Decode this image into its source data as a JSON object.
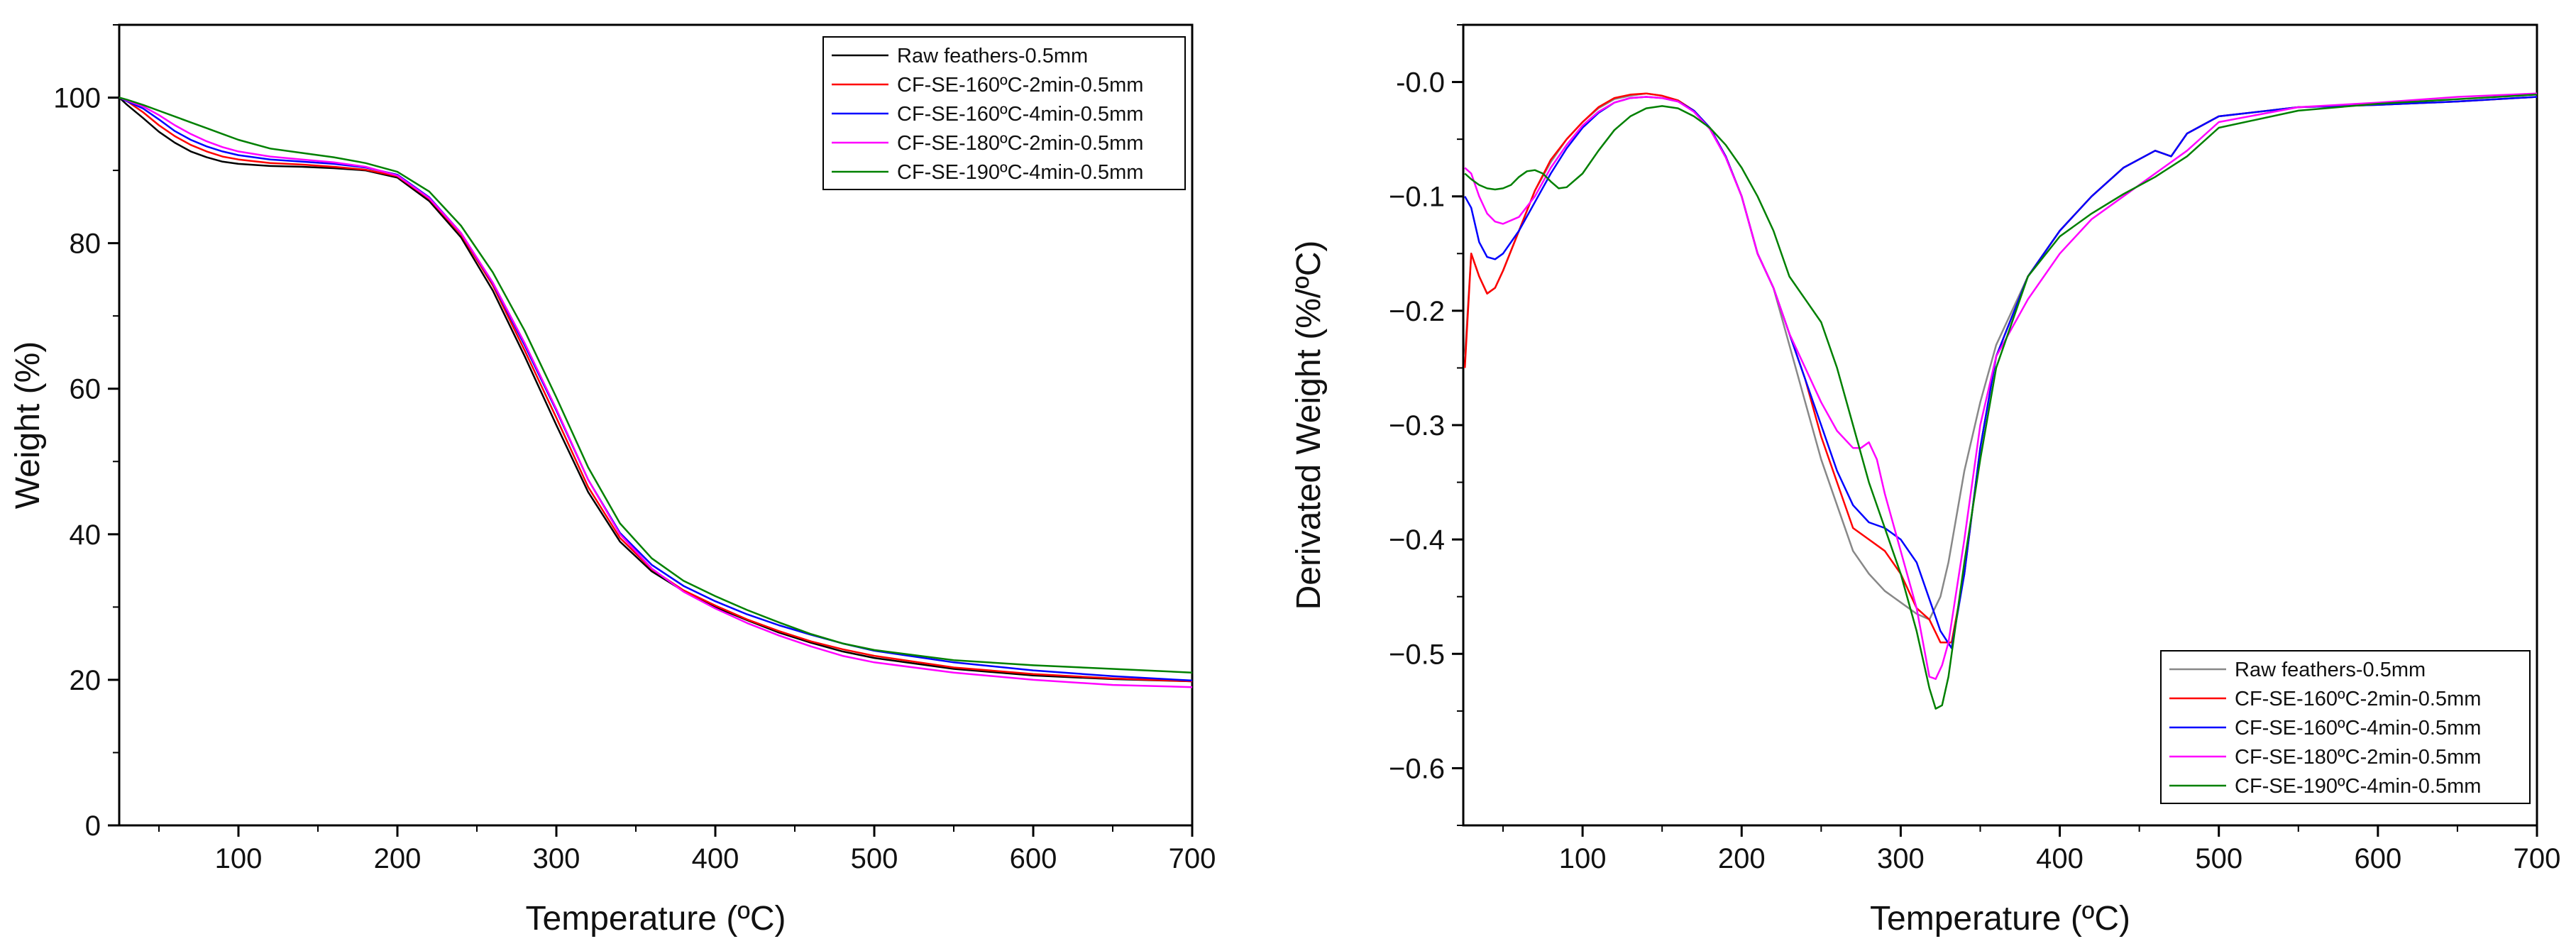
{
  "chart_data": [
    {
      "type": "line",
      "id": "tga",
      "xlabel": "Temperature (ºC)",
      "ylabel": "Weight (%)",
      "xlim": [
        25,
        700
      ],
      "ylim": [
        0,
        110
      ],
      "xticks": [
        100,
        200,
        300,
        400,
        500,
        600,
        700
      ],
      "yticks": [
        0,
        20,
        40,
        60,
        80,
        100
      ],
      "legend_position": "top-right",
      "series": [
        {
          "name": "Raw feathers-0.5mm",
          "color": "#000000",
          "x": [
            25,
            30,
            40,
            50,
            60,
            70,
            80,
            90,
            100,
            120,
            140,
            160,
            180,
            200,
            220,
            240,
            260,
            280,
            300,
            320,
            340,
            360,
            380,
            400,
            420,
            440,
            460,
            480,
            500,
            550,
            600,
            650,
            700
          ],
          "y": [
            100,
            99,
            97.2,
            95.3,
            93.8,
            92.6,
            91.8,
            91.2,
            90.9,
            90.6,
            90.5,
            90.3,
            90,
            89,
            85.8,
            80.8,
            73.5,
            64.5,
            55,
            45.8,
            39,
            34.9,
            32.2,
            30,
            28.2,
            26.5,
            25.1,
            23.9,
            23,
            21.5,
            20.6,
            20.1,
            19.8
          ]
        },
        {
          "name": "CF-SE-160ºC-2min-0.5mm",
          "color": "#ff0000",
          "x": [
            25,
            30,
            40,
            50,
            60,
            70,
            80,
            90,
            100,
            120,
            140,
            160,
            180,
            200,
            220,
            240,
            260,
            280,
            300,
            320,
            340,
            360,
            380,
            400,
            420,
            440,
            460,
            480,
            500,
            550,
            600,
            650,
            700
          ],
          "y": [
            100,
            99.5,
            98,
            96.2,
            94.7,
            93.5,
            92.6,
            91.9,
            91.5,
            91,
            90.8,
            90.5,
            90.1,
            89.2,
            86.1,
            81.2,
            74.2,
            65.3,
            56,
            46.5,
            39.5,
            35.2,
            32.3,
            30.2,
            28.3,
            26.7,
            25.3,
            24.2,
            23.3,
            21.7,
            20.8,
            20.2,
            19.8
          ]
        },
        {
          "name": "CF-SE-160ºC-4min-0.5mm",
          "color": "#0000ff",
          "x": [
            25,
            30,
            40,
            50,
            60,
            70,
            80,
            90,
            100,
            120,
            140,
            160,
            180,
            200,
            220,
            240,
            260,
            280,
            300,
            320,
            340,
            360,
            380,
            400,
            420,
            440,
            460,
            480,
            500,
            550,
            600,
            650,
            700
          ],
          "y": [
            100,
            99.5,
            98.5,
            97,
            95.4,
            94.2,
            93.3,
            92.6,
            92.1,
            91.5,
            91.2,
            90.9,
            90.4,
            89.4,
            86.3,
            81.4,
            74.5,
            66,
            57,
            47.5,
            40.2,
            35.8,
            32.9,
            30.8,
            29,
            27.5,
            26.2,
            25,
            24,
            22.4,
            21.3,
            20.5,
            19.9
          ]
        },
        {
          "name": "CF-SE-180ºC-2min-0.5mm",
          "color": "#ff00ff",
          "x": [
            25,
            30,
            40,
            50,
            60,
            70,
            80,
            90,
            100,
            120,
            140,
            160,
            180,
            200,
            220,
            240,
            260,
            280,
            300,
            320,
            340,
            360,
            380,
            400,
            420,
            440,
            460,
            480,
            500,
            550,
            600,
            650,
            700
          ],
          "y": [
            100,
            99.6,
            98.8,
            97.6,
            96.2,
            95,
            94,
            93.2,
            92.6,
            91.9,
            91.5,
            91.1,
            90.5,
            89.3,
            86.2,
            81.4,
            74.6,
            66.3,
            57.2,
            47.5,
            40,
            35.3,
            32.1,
            29.8,
            27.8,
            26.1,
            24.6,
            23.3,
            22.4,
            21,
            20,
            19.3,
            19
          ]
        },
        {
          "name": "CF-SE-190ºC-4min-0.5mm",
          "color": "#008000",
          "x": [
            25,
            30,
            40,
            50,
            60,
            70,
            80,
            90,
            100,
            120,
            140,
            160,
            180,
            200,
            220,
            240,
            260,
            280,
            300,
            320,
            340,
            360,
            380,
            400,
            420,
            440,
            460,
            480,
            500,
            550,
            600,
            650,
            700
          ],
          "y": [
            100,
            99.7,
            99,
            98.2,
            97.4,
            96.6,
            95.8,
            95,
            94.2,
            93,
            92.4,
            91.8,
            91,
            89.8,
            87.1,
            82.4,
            76,
            68,
            58.8,
            49.2,
            41.5,
            36.7,
            33.6,
            31.5,
            29.6,
            27.9,
            26.3,
            25,
            24.1,
            22.7,
            22,
            21.5,
            21
          ]
        }
      ]
    },
    {
      "type": "line",
      "id": "dtg",
      "xlabel": "Temperature (ºC)",
      "ylabel": "Derivated Weight (%/ºC)",
      "xlim": [
        25,
        700
      ],
      "ylim": [
        -0.65,
        0.05
      ],
      "xticks": [
        100,
        200,
        300,
        400,
        500,
        600,
        700
      ],
      "yticks": [
        0.0,
        -0.1,
        -0.2,
        -0.3,
        -0.4,
        -0.5,
        -0.6
      ],
      "ytick_labels": [
        "-0.0",
        "−0.1",
        "−0.2",
        "−0.3",
        "−0.4",
        "−0.5",
        "−0.6"
      ],
      "legend_position": "bottom-right",
      "series": [
        {
          "name": "Raw feathers-0.5mm",
          "color": "#888888",
          "x": [
            26,
            30,
            35,
            40,
            45,
            50,
            60,
            70,
            80,
            90,
            100,
            110,
            120,
            130,
            140,
            150,
            160,
            170,
            180,
            190,
            200,
            210,
            220,
            230,
            240,
            250,
            260,
            270,
            280,
            290,
            300,
            310,
            318,
            325,
            330,
            335,
            340,
            350,
            360,
            380,
            400,
            420,
            440,
            460,
            470,
            480,
            500,
            550,
            600,
            650,
            700
          ],
          "y": [
            -0.24,
            -0.15,
            -0.17,
            -0.185,
            -0.18,
            -0.165,
            -0.13,
            -0.095,
            -0.07,
            -0.05,
            -0.035,
            -0.023,
            -0.015,
            -0.012,
            -0.01,
            -0.012,
            -0.016,
            -0.025,
            -0.04,
            -0.065,
            -0.1,
            -0.15,
            -0.18,
            -0.23,
            -0.28,
            -0.33,
            -0.37,
            -0.41,
            -0.43,
            -0.445,
            -0.455,
            -0.465,
            -0.47,
            -0.45,
            -0.42,
            -0.38,
            -0.34,
            -0.28,
            -0.23,
            -0.17,
            -0.13,
            -0.1,
            -0.075,
            -0.06,
            -0.065,
            -0.045,
            -0.03,
            -0.022,
            -0.02,
            -0.017,
            -0.013
          ]
        },
        {
          "name": "CF-SE-160ºC-2min-0.5mm",
          "color": "#ff0000",
          "x": [
            26,
            30,
            35,
            40,
            45,
            50,
            60,
            70,
            80,
            90,
            100,
            110,
            120,
            130,
            140,
            150,
            160,
            170,
            180,
            190,
            200,
            210,
            220,
            230,
            240,
            250,
            260,
            270,
            280,
            290,
            300,
            310,
            318,
            325,
            332,
            340,
            350,
            360,
            380,
            400,
            420,
            440,
            460,
            470,
            480,
            500,
            550,
            600,
            650,
            700
          ],
          "y": [
            -0.25,
            -0.15,
            -0.17,
            -0.185,
            -0.18,
            -0.165,
            -0.13,
            -0.095,
            -0.068,
            -0.05,
            -0.035,
            -0.022,
            -0.014,
            -0.011,
            -0.01,
            -0.012,
            -0.016,
            -0.025,
            -0.04,
            -0.065,
            -0.1,
            -0.15,
            -0.18,
            -0.22,
            -0.26,
            -0.31,
            -0.35,
            -0.39,
            -0.4,
            -0.41,
            -0.43,
            -0.46,
            -0.47,
            -0.49,
            -0.49,
            -0.43,
            -0.32,
            -0.24,
            -0.17,
            -0.13,
            -0.1,
            -0.075,
            -0.06,
            -0.065,
            -0.045,
            -0.03,
            -0.022,
            -0.02,
            -0.017,
            -0.013
          ]
        },
        {
          "name": "CF-SE-160ºC-4min-0.5mm",
          "color": "#0000ff",
          "x": [
            26,
            30,
            35,
            40,
            45,
            50,
            60,
            70,
            80,
            90,
            100,
            110,
            120,
            130,
            140,
            150,
            160,
            170,
            180,
            190,
            200,
            210,
            220,
            230,
            240,
            250,
            260,
            270,
            280,
            290,
            300,
            310,
            320,
            325,
            332,
            340,
            350,
            360,
            380,
            400,
            420,
            440,
            460,
            470,
            480,
            500,
            550,
            600,
            650,
            700
          ],
          "y": [
            -0.1,
            -0.11,
            -0.14,
            -0.153,
            -0.155,
            -0.15,
            -0.13,
            -0.105,
            -0.08,
            -0.058,
            -0.04,
            -0.027,
            -0.018,
            -0.014,
            -0.013,
            -0.014,
            -0.017,
            -0.025,
            -0.04,
            -0.065,
            -0.1,
            -0.15,
            -0.18,
            -0.22,
            -0.26,
            -0.3,
            -0.34,
            -0.37,
            -0.385,
            -0.39,
            -0.4,
            -0.42,
            -0.46,
            -0.48,
            -0.495,
            -0.43,
            -0.32,
            -0.24,
            -0.17,
            -0.13,
            -0.1,
            -0.075,
            -0.06,
            -0.065,
            -0.045,
            -0.03,
            -0.022,
            -0.02,
            -0.017,
            -0.013
          ]
        },
        {
          "name": "CF-SE-180ºC-2min-0.5mm",
          "color": "#ff00ff",
          "x": [
            26,
            30,
            35,
            40,
            45,
            50,
            60,
            70,
            80,
            90,
            100,
            110,
            120,
            130,
            140,
            150,
            160,
            170,
            180,
            190,
            200,
            210,
            220,
            230,
            240,
            250,
            260,
            270,
            275,
            280,
            285,
            290,
            300,
            310,
            318,
            322,
            326,
            330,
            340,
            350,
            360,
            380,
            400,
            420,
            440,
            460,
            480,
            500,
            550,
            600,
            650,
            700
          ],
          "y": [
            -0.075,
            -0.08,
            -0.1,
            -0.115,
            -0.122,
            -0.124,
            -0.118,
            -0.1,
            -0.075,
            -0.055,
            -0.038,
            -0.026,
            -0.018,
            -0.014,
            -0.013,
            -0.014,
            -0.017,
            -0.026,
            -0.041,
            -0.066,
            -0.1,
            -0.15,
            -0.18,
            -0.22,
            -0.25,
            -0.28,
            -0.305,
            -0.32,
            -0.32,
            -0.315,
            -0.33,
            -0.36,
            -0.41,
            -0.46,
            -0.52,
            -0.522,
            -0.51,
            -0.49,
            -0.4,
            -0.3,
            -0.24,
            -0.19,
            -0.15,
            -0.12,
            -0.1,
            -0.08,
            -0.06,
            -0.035,
            -0.022,
            -0.018,
            -0.013,
            -0.01
          ]
        },
        {
          "name": "CF-SE-190ºC-4min-0.5mm",
          "color": "#008000",
          "x": [
            26,
            30,
            35,
            40,
            45,
            50,
            55,
            60,
            65,
            70,
            75,
            80,
            85,
            90,
            100,
            110,
            120,
            130,
            140,
            150,
            160,
            170,
            180,
            190,
            200,
            210,
            220,
            230,
            240,
            250,
            260,
            270,
            280,
            290,
            300,
            310,
            318,
            322,
            326,
            330,
            340,
            350,
            360,
            380,
            400,
            420,
            440,
            460,
            480,
            500,
            550,
            600,
            650,
            700
          ],
          "y": [
            -0.08,
            -0.085,
            -0.09,
            -0.093,
            -0.094,
            -0.093,
            -0.09,
            -0.083,
            -0.078,
            -0.077,
            -0.08,
            -0.087,
            -0.093,
            -0.092,
            -0.08,
            -0.06,
            -0.042,
            -0.03,
            -0.023,
            -0.021,
            -0.023,
            -0.03,
            -0.04,
            -0.055,
            -0.075,
            -0.1,
            -0.13,
            -0.17,
            -0.19,
            -0.21,
            -0.25,
            -0.3,
            -0.35,
            -0.39,
            -0.43,
            -0.48,
            -0.53,
            -0.548,
            -0.545,
            -0.52,
            -0.42,
            -0.33,
            -0.25,
            -0.17,
            -0.135,
            -0.115,
            -0.098,
            -0.083,
            -0.065,
            -0.04,
            -0.025,
            -0.019,
            -0.015,
            -0.011
          ]
        }
      ]
    }
  ]
}
